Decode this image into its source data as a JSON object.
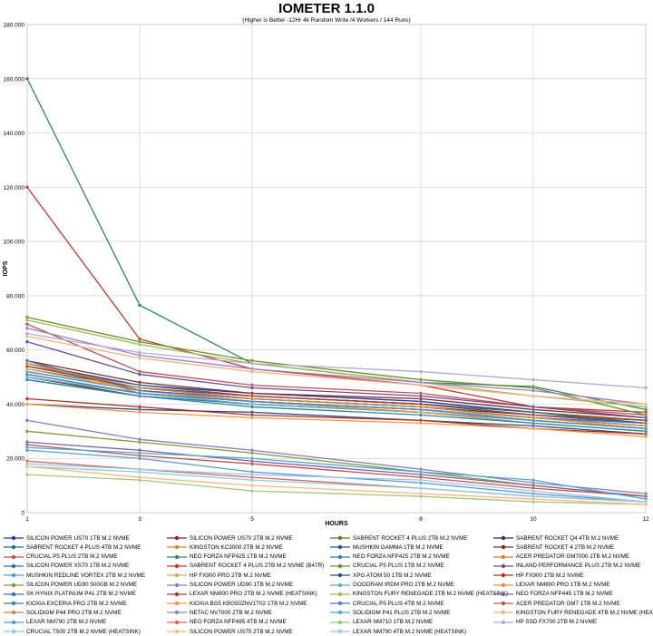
{
  "chart_data": {
    "type": "line",
    "title": "IOMETER 1.1.0",
    "subtitle": "(Higher is Better -12Hr 4k Random Write /4 Workers / 144 Runs)",
    "xlabel": "HOURS",
    "ylabel": "IOPS",
    "x": [
      1,
      3,
      5,
      8,
      10,
      12
    ],
    "ylim": [
      0,
      180
    ],
    "yticks": [
      "0",
      "20.000",
      "40.000",
      "60.000",
      "80.000",
      "100.000",
      "120.000",
      "140.000",
      "160.000",
      "180.000"
    ],
    "grid": true,
    "legend_position": "bottom",
    "series": [
      {
        "name": "SILICON POWER US70 1TB M.2 NVME",
        "color": "#1f3d99",
        "values": [
          55,
          47,
          44,
          41,
          37,
          34
        ]
      },
      {
        "name": "SILICON POWER US70 2TB M.2 NVME",
        "color": "#8b2a22",
        "values": [
          56,
          48,
          44,
          42,
          38,
          35
        ]
      },
      {
        "name": "SABRENT ROCKET 4 PLUS 2TB M.2 NVME",
        "color": "#5c7a2a",
        "values": [
          54,
          46,
          43,
          40,
          37,
          34
        ]
      },
      {
        "name": "SABRENT ROCKET Q4 4TB M.2 NVME",
        "color": "#3b2f63",
        "values": [
          52,
          45,
          42,
          39,
          36,
          33
        ]
      },
      {
        "name": "SABRENT ROCKET 4 PLUS 4TB M.2 NVME",
        "color": "#1e6f80",
        "values": [
          53,
          46,
          43,
          40,
          37,
          33
        ]
      },
      {
        "name": "KINGSTON KC3000 2TB M.2 NVME",
        "color": "#d9822b",
        "values": [
          56,
          44,
          41,
          38,
          35,
          33
        ]
      },
      {
        "name": "MUSHKIN GAMMA 1TB M.2 NVME",
        "color": "#2c4f8c",
        "values": [
          51,
          44,
          41,
          38,
          35,
          32
        ]
      },
      {
        "name": "SABRENT ROCKET 4 2TB M.2 NVME",
        "color": "#7a2c24",
        "values": [
          50,
          43,
          40,
          37,
          34,
          31
        ]
      },
      {
        "name": "CRUCIAL P5 PLUS 2TB M.2 NVME",
        "color": "#c0504d",
        "values": [
          69.5,
          52,
          47,
          44,
          39,
          36
        ]
      },
      {
        "name": "NEO FORZA NFP425 1TB M.2 NVME",
        "color": "#2e8b57",
        "values": [
          160,
          76.5,
          55,
          48,
          46.5,
          38
        ]
      },
      {
        "name": "NEO FORZA NFP425 2TB M.2 NVME",
        "color": "#2f7fa8",
        "values": [
          49,
          43,
          40,
          37,
          34,
          31
        ]
      },
      {
        "name": "ACER PREDATOR GM7000 2TB M.2 NVME",
        "color": "#e07b30",
        "values": [
          55,
          46,
          42,
          39,
          35,
          32
        ]
      },
      {
        "name": "SILICON POWER XS70 1TB M.2 NVME",
        "color": "#3a62a7",
        "values": [
          54,
          47,
          43,
          40,
          36,
          33
        ]
      },
      {
        "name": "SABRENT ROCKET 4 PLUS 2TB M.2 NVME (B47R)",
        "color": "#c0392b",
        "values": [
          120,
          64,
          53,
          47,
          39,
          37
        ]
      },
      {
        "name": "CRUCIAL P5 PLUS 1TB M.2 NVME",
        "color": "#6b8e23",
        "values": [
          72,
          63,
          56,
          49,
          46,
          36
        ]
      },
      {
        "name": "INLAND PERFORMANCE PLUS 2TB M.2 NVME",
        "color": "#6a4c9c",
        "values": [
          63,
          51,
          46,
          43,
          39,
          35
        ]
      },
      {
        "name": "MUSHKIN REDLINE VORTEX 2TB M.2 NVME",
        "color": "#4aa3c4",
        "values": [
          52,
          45,
          42,
          39,
          35,
          32
        ]
      },
      {
        "name": "HP FX900 PRO 2TB M.2 NVME",
        "color": "#e8a15a",
        "values": [
          53,
          45,
          41,
          38,
          35,
          31
        ]
      },
      {
        "name": "XPG ATOM 50 1TB M.2 NVME",
        "color": "#2b4c7e",
        "values": [
          40,
          38,
          37,
          34,
          32,
          29
        ]
      },
      {
        "name": "HP FX900 1TB M.2 NVME",
        "color": "#a93226",
        "values": [
          42,
          39,
          36,
          34,
          31,
          29
        ]
      },
      {
        "name": "SILICON POWER UD90 500GB M.2 NVME",
        "color": "#7f9a3f",
        "values": [
          30,
          26,
          22,
          15,
          10,
          6
        ]
      },
      {
        "name": "SILICON POWER UD90 1TB M.2 NVME",
        "color": "#8e7cc3",
        "values": [
          34,
          27,
          23,
          16,
          11,
          7
        ]
      },
      {
        "name": "GOODRAM IRDM PRO 2TB M.2 NVME",
        "color": "#5bb0c7",
        "values": [
          50,
          44,
          40,
          37,
          34,
          31
        ]
      },
      {
        "name": "LEXAR NM800 PRO 1TB M.2 NVME",
        "color": "#e58e3c",
        "values": [
          55,
          45,
          41,
          37,
          33,
          30
        ]
      },
      {
        "name": "SK HYNIX PLATINUM P41 2TB M.2 NVME",
        "color": "#3d6cb9",
        "values": [
          56,
          45,
          42,
          39,
          35,
          33
        ]
      },
      {
        "name": "LEXAR NM800 PRO 2TB M.2 NVME (HEATSINK)",
        "color": "#b03a2e",
        "values": [
          54,
          46,
          43,
          40,
          36,
          34
        ]
      },
      {
        "name": "KINGSTON FURY RENEGADE 2TB M.2 NVME (HEATSINK)",
        "color": "#9bbb59",
        "values": [
          71,
          62,
          55,
          48,
          43,
          39
        ]
      },
      {
        "name": "NEO FORZA NFP445 1TB M.2 NVME",
        "color": "#7d5fa6",
        "values": [
          26,
          23,
          19,
          14,
          10,
          6
        ]
      },
      {
        "name": "KIOXIA EXCERIA PRO 2TB M.2 NVME",
        "color": "#31859c",
        "values": [
          49,
          43,
          39,
          36,
          33,
          30
        ]
      },
      {
        "name": "KIOXIA BG5 KBG50ZNV1T02 1TB M.2 NVME",
        "color": "#f79646",
        "values": [
          40,
          37,
          35,
          33,
          31,
          28
        ]
      },
      {
        "name": "CRUCIAL P5 PLUS 4TB M.2 NVME",
        "color": "#4f81bd",
        "values": [
          51,
          44,
          41,
          38,
          34,
          31
        ]
      },
      {
        "name": "ACER PREDATOR GM7 1TB M.2 NVME",
        "color": "#c0504d",
        "values": [
          25,
          21,
          18,
          13,
          9,
          6
        ]
      },
      {
        "name": "SOLIDIGM P44 PRO 2TB M.2 NVME",
        "color": "#c28a3a",
        "values": [
          55,
          46,
          42,
          39,
          35,
          32
        ]
      },
      {
        "name": "NETAC NV7000 2TB M.2 NVME",
        "color": "#9b7fc4",
        "values": [
          68,
          58,
          53,
          48,
          45,
          40
        ]
      },
      {
        "name": "SOLIDIGM P41 PLUS 2TB M.2 NVME",
        "color": "#4bacc6",
        "values": [
          24,
          22,
          20,
          15,
          12,
          5
        ]
      },
      {
        "name": "KINGSTON FURY RENEGADE 4TB M.2 NVME (HEATSINK)",
        "color": "#f4b183",
        "values": [
          65,
          57,
          52,
          47,
          43,
          40
        ]
      },
      {
        "name": "LEXAR NM790 2TB M.2 NVME",
        "color": "#5b9bd5",
        "values": [
          23,
          20,
          15,
          11,
          7,
          4
        ]
      },
      {
        "name": "NEO FORZA NFP495 4TB M.2 NVME",
        "color": "#d0675f",
        "values": [
          19,
          16,
          13,
          9,
          6,
          4
        ]
      },
      {
        "name": "LEXAR NM710 1TB M.2 NVME",
        "color": "#a9c47f",
        "values": [
          14,
          12,
          8,
          6,
          4,
          3
        ]
      },
      {
        "name": "HP SSD FX700 2TB M.2 NVME",
        "color": "#b4a7d6",
        "values": [
          66,
          59,
          55,
          52,
          49,
          46
        ]
      },
      {
        "name": "CRUCIAL T500 2TB M.2 NVME (HEATSINK)",
        "color": "#8dc9de",
        "values": [
          17,
          15,
          12,
          9,
          6,
          4
        ]
      },
      {
        "name": "SILICON POWER US75 2TB M.2 NVME",
        "color": "#f9b97a",
        "values": [
          17,
          13,
          10,
          7,
          5,
          3
        ]
      },
      {
        "name": "LEXAR NM790 4TB M.2 NVME (HEATSINK)",
        "color": "#9dc3e6",
        "values": [
          18,
          16,
          14,
          12,
          8,
          4
        ]
      }
    ]
  }
}
